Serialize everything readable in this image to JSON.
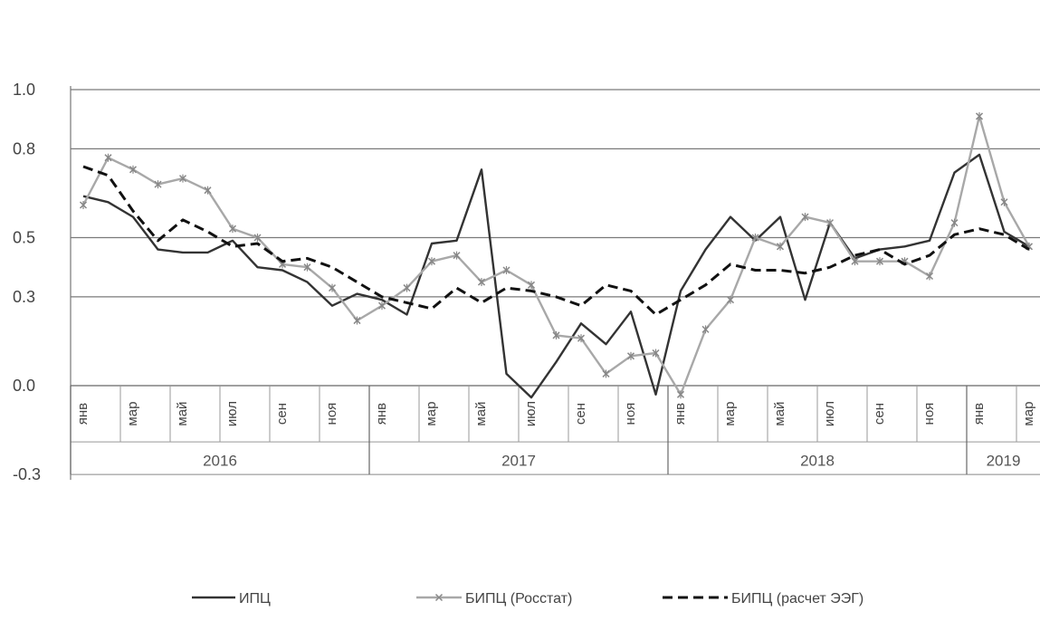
{
  "chart_data": {
    "type": "line",
    "title": "",
    "xlabel": "",
    "ylabel": "",
    "ylim": [
      -0.3,
      1.0
    ],
    "y_ticks": [
      "1.0",
      "0.8",
      "0.5",
      "0.3",
      "0.0",
      "-0.3"
    ],
    "y_tick_values": [
      1.0,
      0.8,
      0.5,
      0.3,
      0.0,
      -0.3
    ],
    "grid": true,
    "legend_position": "bottom",
    "month_ticks": [
      "янв",
      "мар",
      "май",
      "июл",
      "сен",
      "ноя",
      "янв",
      "мар",
      "май",
      "июл",
      "сен",
      "ноя",
      "янв",
      "мар",
      "май",
      "июл",
      "сен",
      "ноя",
      "янв",
      "мар"
    ],
    "month_tick_index": [
      0,
      2,
      4,
      6,
      8,
      10,
      12,
      14,
      16,
      18,
      20,
      22,
      24,
      26,
      28,
      30,
      32,
      34,
      36,
      38
    ],
    "year_labels": [
      "2016",
      "2017",
      "2018",
      "2019"
    ],
    "year_start_index": [
      0,
      12,
      24,
      36
    ],
    "x": [
      "2016-01",
      "2016-02",
      "2016-03",
      "2016-04",
      "2016-05",
      "2016-06",
      "2016-07",
      "2016-08",
      "2016-09",
      "2016-10",
      "2016-11",
      "2016-12",
      "2017-01",
      "2017-02",
      "2017-03",
      "2017-04",
      "2017-05",
      "2017-06",
      "2017-07",
      "2017-08",
      "2017-09",
      "2017-10",
      "2017-11",
      "2017-12",
      "2018-01",
      "2018-02",
      "2018-03",
      "2018-04",
      "2018-05",
      "2018-06",
      "2018-07",
      "2018-08",
      "2018-09",
      "2018-10",
      "2018-11",
      "2018-12",
      "2019-01",
      "2019-02",
      "2019-03"
    ],
    "series": [
      {
        "name": "ИПЦ",
        "style": "solid",
        "color": "#333333",
        "values": [
          0.64,
          0.62,
          0.57,
          0.46,
          0.45,
          0.45,
          0.49,
          0.4,
          0.39,
          0.35,
          0.27,
          0.31,
          0.29,
          0.24,
          0.48,
          0.49,
          0.73,
          0.04,
          -0.04,
          0.08,
          0.21,
          0.14,
          0.25,
          -0.03,
          0.32,
          0.46,
          0.57,
          0.49,
          0.57,
          0.29,
          0.55,
          0.43,
          0.46,
          0.47,
          0.49,
          0.72,
          0.78,
          0.52,
          0.47
        ]
      },
      {
        "name": "БИПЦ (Росстат)",
        "style": "solid-marker",
        "color": "#a8a8a8",
        "values": [
          0.61,
          0.77,
          0.73,
          0.68,
          0.7,
          0.66,
          0.53,
          0.5,
          0.41,
          0.4,
          0.33,
          0.22,
          0.27,
          0.33,
          0.42,
          0.44,
          0.35,
          0.39,
          0.34,
          0.17,
          0.16,
          0.04,
          0.1,
          0.11,
          -0.03,
          0.19,
          0.29,
          0.5,
          0.47,
          0.57,
          0.55,
          0.42,
          0.42,
          0.42,
          0.37,
          0.55,
          0.91,
          0.62,
          0.47
        ]
      },
      {
        "name": "БИПЦ (расчет ЭЭГ)",
        "style": "dashed",
        "color": "#111111",
        "values": [
          0.74,
          0.71,
          0.59,
          0.49,
          0.56,
          0.52,
          0.47,
          0.48,
          0.42,
          0.43,
          0.4,
          0.35,
          0.3,
          0.28,
          0.26,
          0.33,
          0.28,
          0.33,
          0.32,
          0.3,
          0.27,
          0.34,
          0.32,
          0.24,
          0.29,
          0.34,
          0.41,
          0.39,
          0.39,
          0.38,
          0.4,
          0.44,
          0.46,
          0.41,
          0.44,
          0.51,
          0.53,
          0.51,
          0.46
        ]
      }
    ]
  }
}
